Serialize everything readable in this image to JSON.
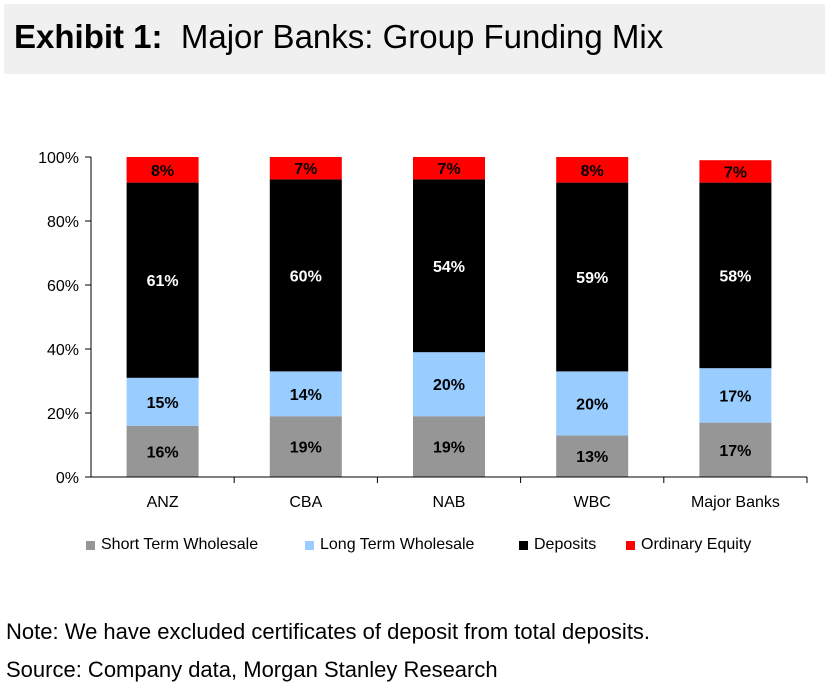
{
  "header": {
    "title_lead": "Exhibit 1:",
    "title_rest": "Major Banks: Group Funding Mix"
  },
  "chart_data": {
    "type": "bar",
    "stacked": true,
    "categories": [
      "ANZ",
      "CBA",
      "NAB",
      "WBC",
      "Major Banks"
    ],
    "series": [
      {
        "name": "Short Term Wholesale",
        "color": "#969696",
        "values": [
          16,
          19,
          19,
          13,
          17
        ],
        "labels": [
          "16%",
          "19%",
          "19%",
          "13%",
          "17%"
        ]
      },
      {
        "name": "Long Term Wholesale",
        "color": "#99ccff",
        "values": [
          15,
          14,
          20,
          20,
          17
        ],
        "labels": [
          "15%",
          "14%",
          "20%",
          "20%",
          "17%"
        ]
      },
      {
        "name": "Deposits",
        "color": "#000000",
        "values": [
          61,
          60,
          54,
          59,
          58
        ],
        "labels": [
          "61%",
          "60%",
          "54%",
          "59%",
          "58%"
        ]
      },
      {
        "name": "Ordinary Equity",
        "color": "#ff0000",
        "values": [
          8,
          7,
          7,
          8,
          7
        ],
        "labels": [
          "8%",
          "7%",
          "7%",
          "8%",
          "7%"
        ]
      }
    ],
    "ylim": [
      0,
      100
    ],
    "yticks": [
      "0%",
      "20%",
      "40%",
      "60%",
      "80%",
      "100%"
    ],
    "xlabel": "",
    "ylabel": "",
    "grid": false,
    "legend_position": "bottom"
  },
  "footer": {
    "note": "Note: We have excluded certificates of deposit from total deposits.",
    "source": "Source: Company data, Morgan Stanley Research"
  }
}
